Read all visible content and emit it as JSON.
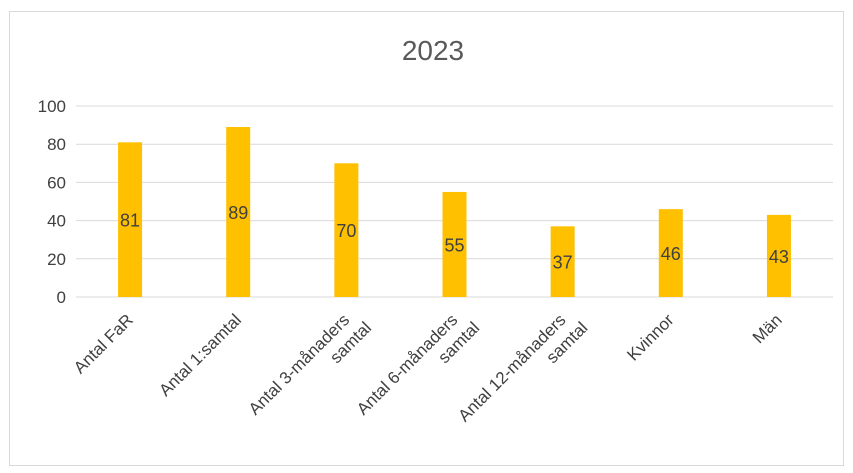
{
  "chart_data": {
    "type": "bar",
    "title": "2023",
    "categories": [
      [
        "Antal FaR"
      ],
      [
        "Antal 1:samtal"
      ],
      [
        "Antal 3-månaders",
        "samtal"
      ],
      [
        "Antal 6-månaders",
        "samtal"
      ],
      [
        "Antal 12-månaders",
        "samtal"
      ],
      [
        "Kvinnor"
      ],
      [
        "Män"
      ]
    ],
    "values": [
      81,
      89,
      70,
      55,
      37,
      46,
      43
    ],
    "ylim": [
      0,
      100
    ],
    "yticks": [
      0,
      20,
      40,
      60,
      80,
      100
    ],
    "grid": true,
    "bar_color": "#FFC000",
    "xlabel": "",
    "ylabel": ""
  }
}
